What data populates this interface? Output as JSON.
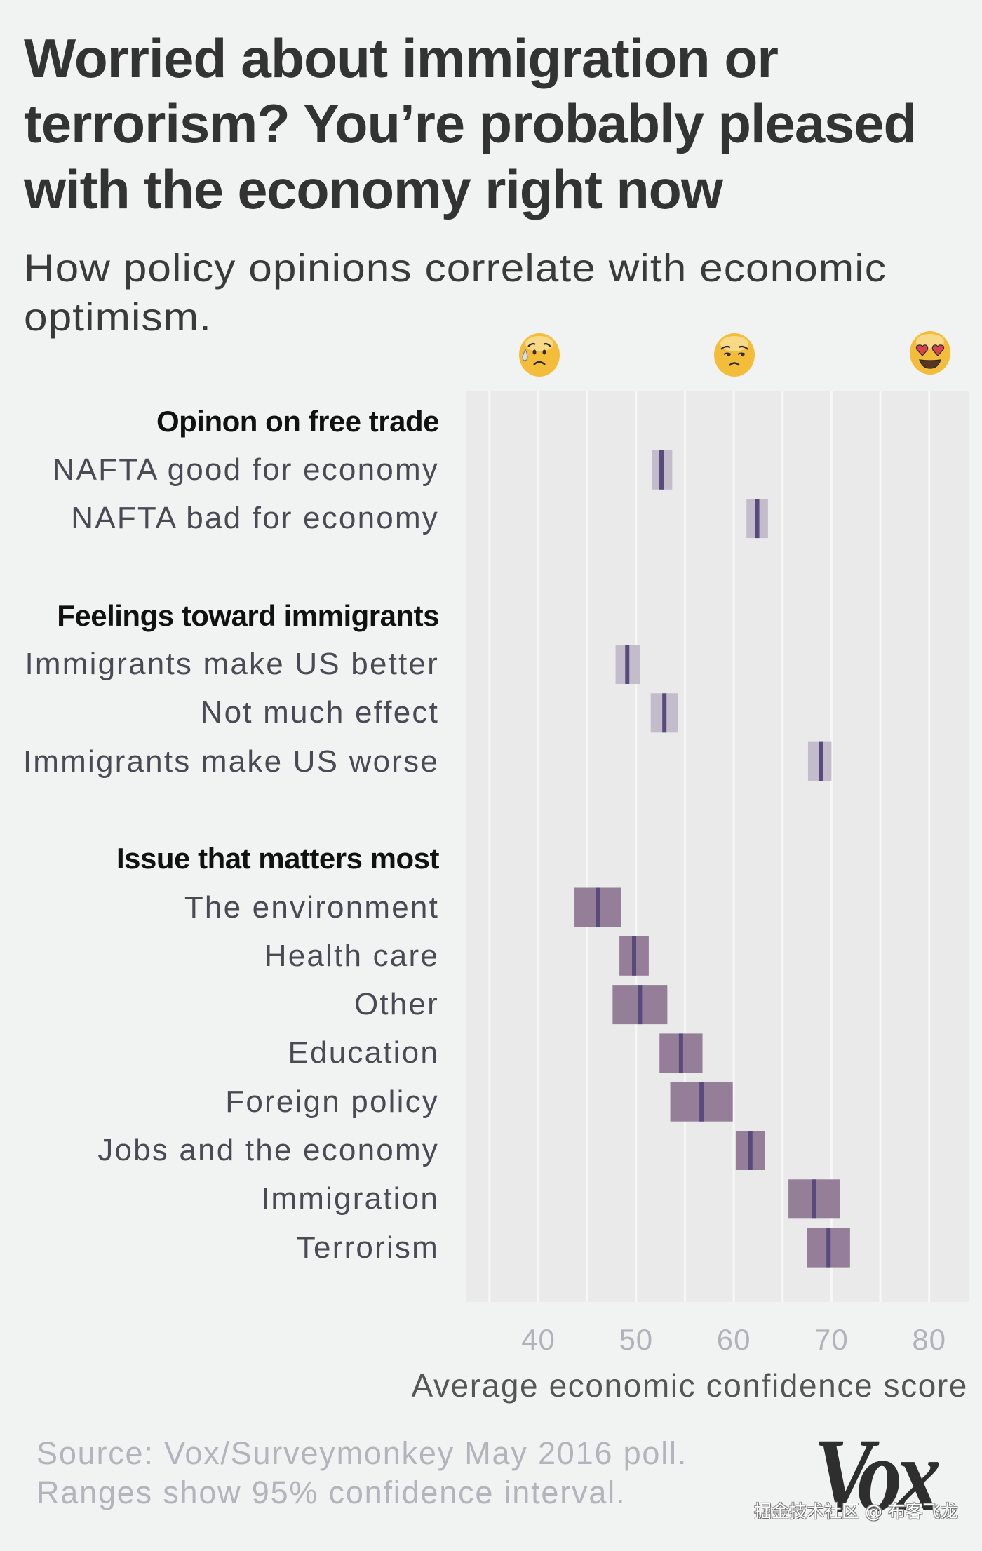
{
  "header": {
    "title_lines": [
      "Worried about immigration or",
      "terrorism? You’re probably pleased",
      "with the economy right now"
    ],
    "subtitle_lines": [
      "How policy opinions correlate with economic",
      "optimism."
    ]
  },
  "emojis": [
    {
      "icon": "anxious-face-with-sweat-icon",
      "at_value": 40
    },
    {
      "icon": "unamused-face-icon",
      "at_value": 60
    },
    {
      "icon": "heart-eyes-face-icon",
      "at_value": 80
    }
  ],
  "colors": {
    "page_bg": "#f1f2f2",
    "plot_bg": "#eaeaea",
    "gridline": "#f7f7f7",
    "ci_box_light": "#c2bccb",
    "ci_box_dark": "#957e98",
    "mean_line": "#584a7c",
    "title": "#333333"
  },
  "chart_data": {
    "type": "interval",
    "title": "Worried about immigration or terrorism? You’re probably pleased with the economy right now",
    "subtitle": "How policy opinions correlate with economic optimism.",
    "xlabel": "Average economic confidence score",
    "ylabel": "",
    "xlim": [
      32.5,
      84
    ],
    "xticks": [
      40,
      50,
      60,
      70,
      80
    ],
    "xtick_labels": [
      "40",
      "50",
      "60",
      "70",
      "80"
    ],
    "gridlines": [
      35,
      40,
      45,
      50,
      55,
      60,
      65,
      70,
      75,
      80
    ],
    "grid": true,
    "interval_label": "95% confidence interval",
    "groups": [
      {
        "header": "Opinon on free trade",
        "style": "light",
        "items": [
          {
            "label": "NAFTA good for economy",
            "low": 51.6,
            "mean": 52.6,
            "high": 53.7
          },
          {
            "label": "NAFTA bad for economy",
            "low": 61.3,
            "mean": 62.4,
            "high": 63.5
          }
        ]
      },
      {
        "header": "Feelings toward immigrants",
        "style": "light",
        "items": [
          {
            "label": "Immigrants make US better",
            "low": 47.9,
            "mean": 49.1,
            "high": 50.4
          },
          {
            "label": "Not much effect",
            "low": 51.5,
            "mean": 52.9,
            "high": 54.3
          },
          {
            "label": "Immigrants make US worse",
            "low": 67.6,
            "mean": 68.9,
            "high": 70.0
          }
        ]
      },
      {
        "header": "Issue that matters most",
        "style": "dark",
        "items": [
          {
            "label": "The environment",
            "low": 43.7,
            "mean": 46.1,
            "high": 48.5
          },
          {
            "label": "Health care",
            "low": 48.3,
            "mean": 49.8,
            "high": 51.3
          },
          {
            "label": "Other",
            "low": 47.6,
            "mean": 50.4,
            "high": 53.2
          },
          {
            "label": "Education",
            "low": 52.4,
            "mean": 54.6,
            "high": 56.8
          },
          {
            "label": "Foreign policy",
            "low": 53.5,
            "mean": 56.7,
            "high": 59.9
          },
          {
            "label": "Jobs and the economy",
            "low": 60.2,
            "mean": 61.7,
            "high": 63.2
          },
          {
            "label": "Immigration",
            "low": 65.6,
            "mean": 68.2,
            "high": 70.9
          },
          {
            "label": "Terrorism",
            "low": 67.5,
            "mean": 69.7,
            "high": 71.9
          }
        ]
      }
    ]
  },
  "footer": {
    "source_lines": [
      "Source: Vox/Surveymonkey May 2016 poll.",
      "Ranges show 95% confidence interval."
    ],
    "logo_text": "Vox",
    "watermark": "掘金技术社区 @ 布客飞龙"
  }
}
